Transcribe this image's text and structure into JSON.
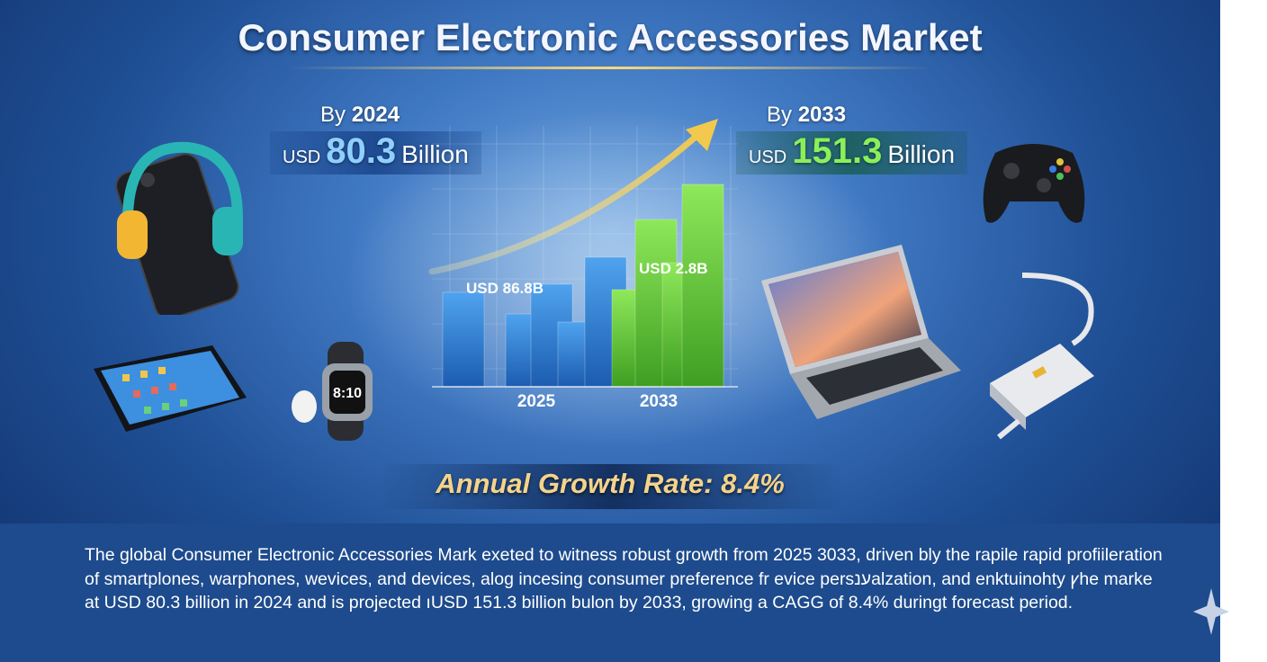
{
  "title": "Consumer Electronic Accessories Market",
  "left_stat": {
    "by": "By",
    "year": "2024",
    "currency": "USD",
    "value": "80.3",
    "unit": "Billion"
  },
  "right_stat": {
    "by": "By",
    "year": "2033",
    "currency": "USD",
    "value": "151.3",
    "unit": "Billion"
  },
  "growth_rate": "Annual Growth Rate: 8.4%",
  "description": "The global Consumer Electronic Accessories Mark exeted to witness robust growth from 2025 3033, driven bly  the rapile rapid profiileration of smartplones, warphones, wevices, and devices, alog incesing consumer preference fr evice persענalzation,  and enktuinohty ꝩhe marke at USD 80.3 billion in 2024 and is projected ıUSD 151.3 billion bulon by 2033, growing  a CAGG of 8.4%  duringt forecast period.",
  "colors": {
    "blue_bar": "#2f7fd6",
    "green_bar": "#6fcf3a",
    "arrow": "#f2c94c",
    "title": "#f3f6ff"
  },
  "devices": [
    "smartphone-with-headphones",
    "tablet",
    "smartwatch-with-earbud",
    "laptop",
    "game-controller",
    "charger-adapter"
  ],
  "chart_data": {
    "type": "bar",
    "x_labels": [
      "2025",
      "2033"
    ],
    "series": [
      {
        "values": [
          0.35,
          0.27,
          0.38,
          0.24,
          0.48
        ],
        "color": "#2f7fd6"
      },
      {
        "values": [
          0.36,
          0.62,
          0.46,
          0.75
        ],
        "color": "#6fcf3a"
      }
    ],
    "annotations": [
      "USD 86.8B",
      "USD 2.8B"
    ],
    "trend_arrow": true
  }
}
